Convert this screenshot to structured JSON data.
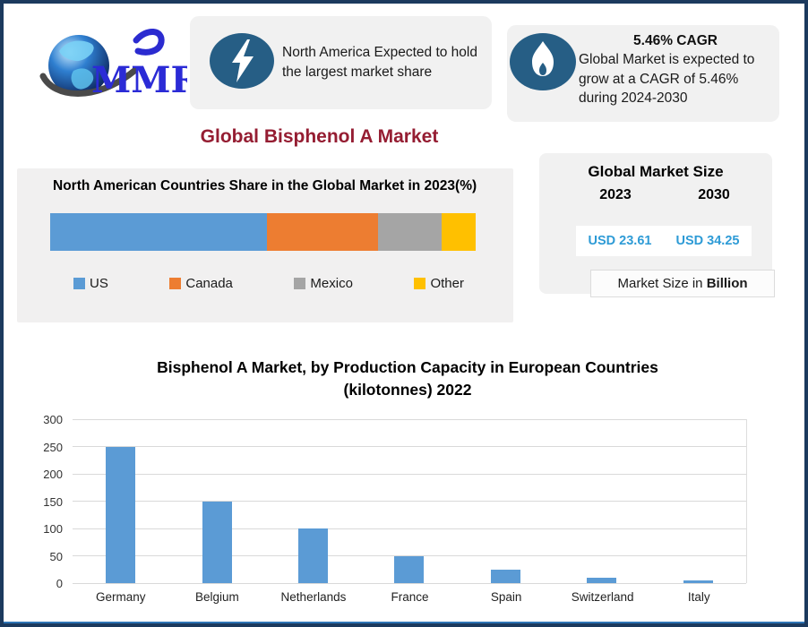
{
  "logo": {
    "text": "MMR"
  },
  "callout_na": {
    "icon": "lightning-bolt-icon",
    "text": "North America Expected to hold the largest market share"
  },
  "callout_cagr": {
    "icon": "flame-icon",
    "heading": "5.46% CAGR",
    "body": "Global Market is expected to grow at a CAGR of 5.46% during 2024-2030"
  },
  "page_title": "Global Bisphenol A Market",
  "market_size": {
    "title": "Global Market Size",
    "years": [
      "2023",
      "2030"
    ],
    "values": [
      "USD 23.61",
      "USD 34.25"
    ],
    "value_color": "#2E9BD6",
    "footnote_prefix": "Market Size in ",
    "footnote_bold": "Billion"
  },
  "colors": {
    "frame_border": "#1C3A5E",
    "bottom_accent": "#2E74B5",
    "panel_bg": "#F1F1F1",
    "title_maroon": "#951D32",
    "icon_ellipse": "#265E85",
    "bar_blue": "#5B9BD5"
  },
  "chart_data": [
    {
      "type": "bar",
      "subtype": "stacked-horizontal-single-bar",
      "title": "North American Countries Share in the Global Market in 2023(%)",
      "categories": [
        "US",
        "Canada",
        "Mexico",
        "Other"
      ],
      "values": [
        51,
        26,
        15,
        8
      ],
      "unit": "%",
      "colors": [
        "#5B9BD5",
        "#ED7D31",
        "#A5A5A5",
        "#FFC000"
      ],
      "legend_position": "bottom",
      "grid": false
    },
    {
      "type": "bar",
      "title": "Bisphenol A Market, by Production Capacity in European Countries (kilotonnes) 2022",
      "categories": [
        "Germany",
        "Belgium",
        "Netherlands",
        "France",
        "Spain",
        "Switzerland",
        "Italy"
      ],
      "values": [
        250,
        150,
        100,
        50,
        25,
        10,
        5
      ],
      "xlabel": "",
      "ylabel": "",
      "ylim": [
        0,
        300
      ],
      "yticks": [
        0,
        50,
        100,
        150,
        200,
        250,
        300
      ],
      "bar_color": "#5B9BD5",
      "grid": true,
      "legend_position": "none"
    }
  ]
}
